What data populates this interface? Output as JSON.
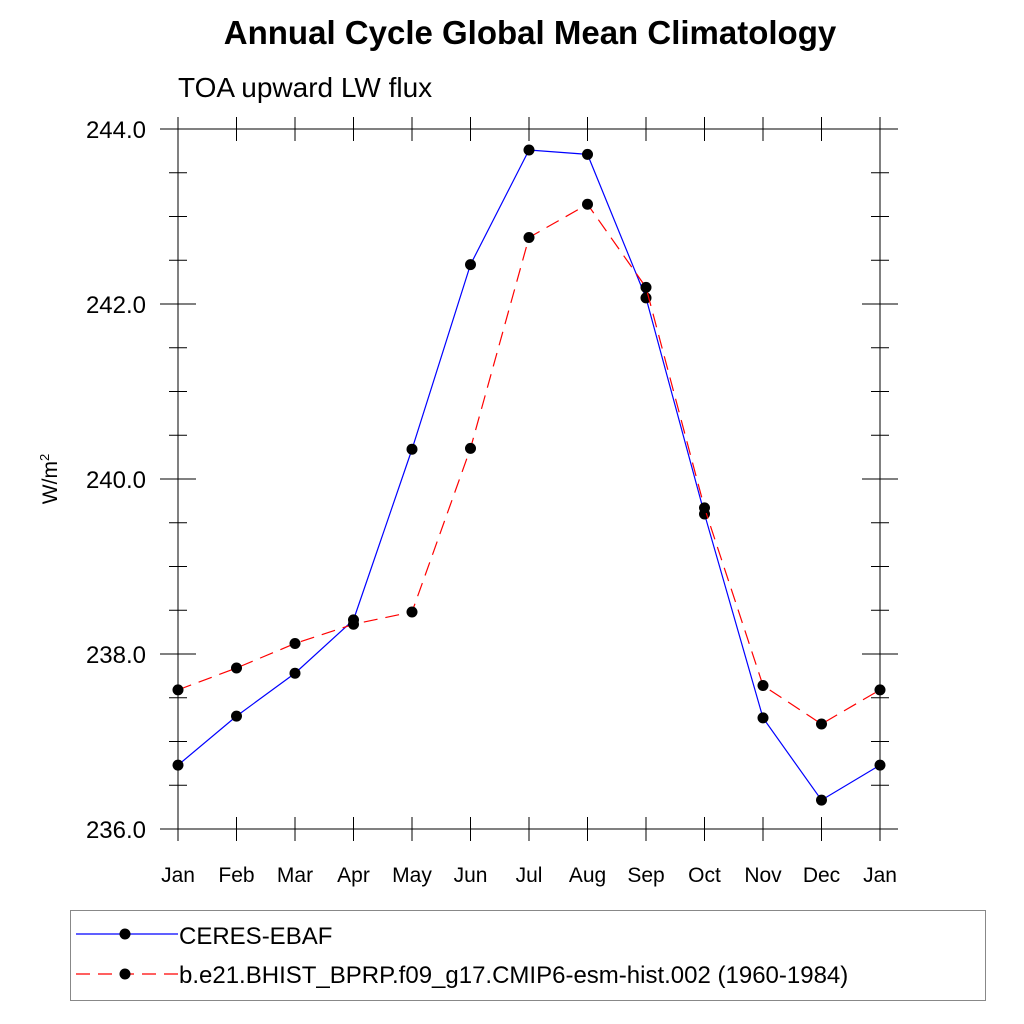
{
  "chart_data": {
    "type": "line",
    "title": "Annual Cycle Global Mean Climatology",
    "subtitle": "TOA upward LW flux",
    "ylabel": "W/m",
    "ylabel_superscript": "2",
    "ylim": [
      236.0,
      244.0
    ],
    "yticks": [
      "236.0",
      "238.0",
      "240.0",
      "242.0",
      "244.0"
    ],
    "categories": [
      "Jan",
      "Feb",
      "Mar",
      "Apr",
      "May",
      "Jun",
      "Jul",
      "Aug",
      "Sep",
      "Oct",
      "Nov",
      "Dec",
      "Jan"
    ],
    "grid": false,
    "legend_position": "bottom",
    "series": [
      {
        "name": "CERES-EBAF",
        "color": "#0000ff",
        "dash": "solid",
        "values": [
          236.73,
          237.29,
          237.78,
          238.39,
          240.34,
          242.45,
          243.76,
          243.71,
          242.07,
          239.6,
          237.27,
          236.33,
          236.73
        ]
      },
      {
        "name": "b.e21.BHIST_BPRP.f09_g17.CMIP6-esm-hist.002 (1960-1984)",
        "color": "#ff0000",
        "dash": "dashed",
        "values": [
          237.59,
          237.84,
          238.12,
          238.34,
          238.48,
          240.35,
          242.76,
          243.14,
          242.19,
          239.67,
          237.64,
          237.2,
          237.59
        ]
      }
    ]
  }
}
